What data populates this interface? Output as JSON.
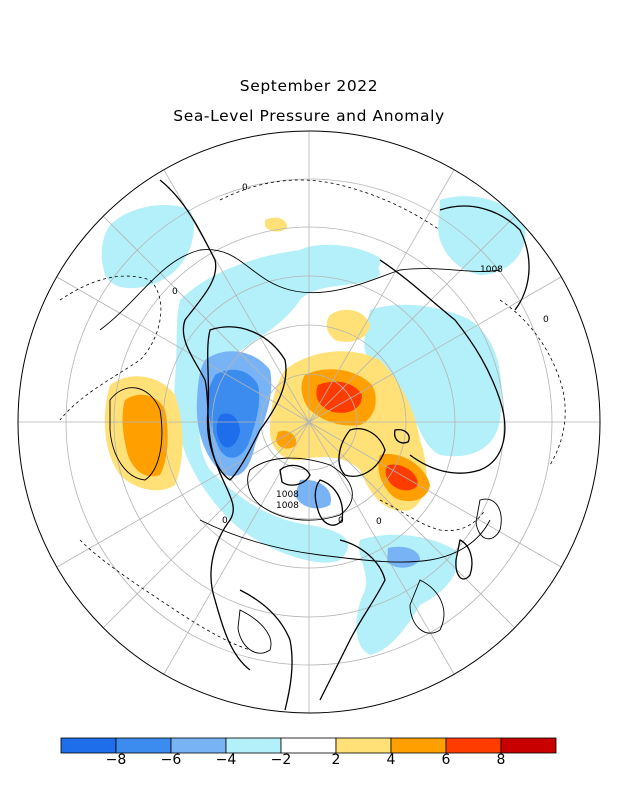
{
  "title": "September 2022",
  "subtitle": "Sea-Level Pressure and Anomaly",
  "contour_labels": [
    "1008",
    "1008",
    "1008",
    "0",
    "0",
    "0",
    "0",
    "0",
    "0"
  ],
  "colorbar": {
    "tick_labels": [
      "−8",
      "−6",
      "−4",
      "−2",
      "2",
      "4",
      "6",
      "8"
    ],
    "colors": [
      "#1e6eeb",
      "#3c8cf0",
      "#78b4f5",
      "#b4f0fa",
      "#ffffff",
      "#ffe178",
      "#ffa000",
      "#ff3c00",
      "#c80000"
    ]
  },
  "colors": {
    "land_outline": "#000000",
    "grid": "#b4b4b4"
  }
}
